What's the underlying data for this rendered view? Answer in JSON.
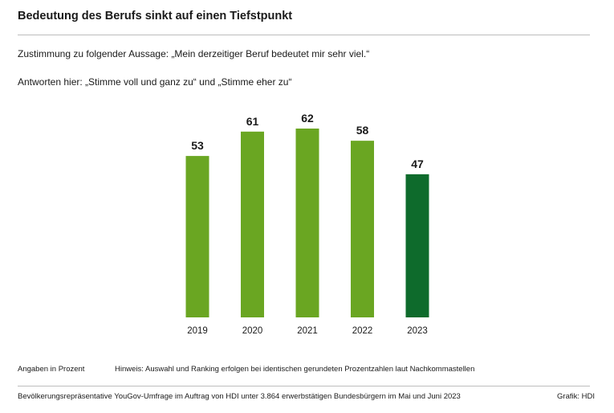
{
  "header": {
    "title": "Bedeutung des Berufs sinkt auf einen Tiefstpunkt",
    "subtitle_line1": "Zustimmung zu folgender Aussage: „Mein derzeitiger Beruf bedeutet mir sehr viel.“",
    "subtitle_line2": "Antworten hier: „Stimme voll und ganz zu“ und „Stimme eher zu“"
  },
  "chart_data": {
    "type": "bar",
    "categories": [
      "2019",
      "2020",
      "2021",
      "2022",
      "2023"
    ],
    "values": [
      53,
      61,
      62,
      58,
      47
    ],
    "ylim": [
      0,
      62
    ],
    "colors": [
      "#6aa622",
      "#6aa622",
      "#6aa622",
      "#6aa622",
      "#0e6b2c"
    ],
    "data_labels": true,
    "grid": false
  },
  "footer": {
    "unit_note": "Angaben in Prozent",
    "hint": "Hinweis: Auswahl und Ranking erfolgen bei identischen gerundeten Prozentzahlen laut Nachkommastellen",
    "source": "Bevölkerungsrepräsentative YouGov-Umfrage im Auftrag von HDI unter 3.864 erwerbstätigen Bundesbürgern im Mai und Juni 2023",
    "credit": "Grafik: HDI"
  }
}
